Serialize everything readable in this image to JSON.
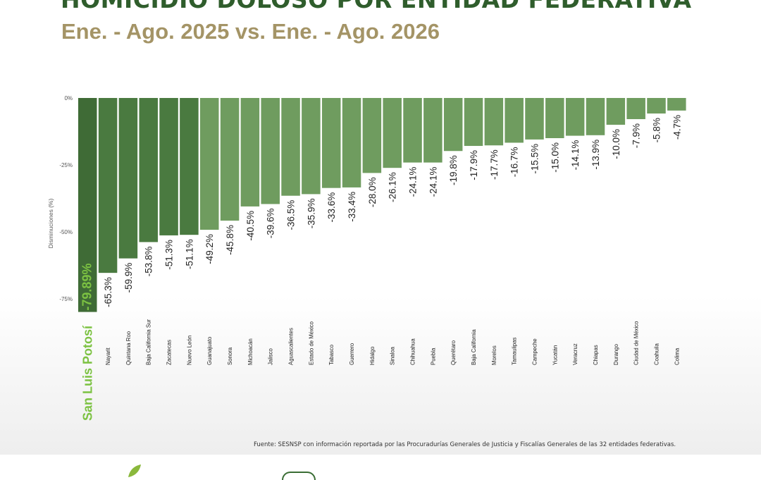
{
  "header": {
    "title": "HOMICIDIO DOLOSO POR ENTIDAD FEDERATIVA",
    "subtitle": "Ene. - Ago. 2025 vs. Ene. - Ago. 2026"
  },
  "footer": {
    "source": "Fuente: SESNSP con información reportada por las Procuradurías Generales de Justicia y Fiscalías Generales de las 32 entidades federativas."
  },
  "colors": {
    "highlight_bar": "#3f6b36",
    "dark_bar": "#4a7a40",
    "light_bar": "#6f9c5f",
    "highlight_text": "#7cc242",
    "title": "#2f5d2c",
    "subtitle": "#a49466"
  },
  "chart_data": {
    "type": "bar",
    "ylabel": "Disminuciones (%)",
    "ylim": [
      -80,
      0
    ],
    "yticks": [
      0,
      -25,
      -50,
      -75
    ],
    "ytick_labels": [
      "0%",
      "-25%",
      "-50%",
      "-75%"
    ],
    "grid": false,
    "legend": "none",
    "highlight": "San Luis Potosí",
    "categories": [
      "San Luis Potosí",
      "Nayarit",
      "Quintana Roo",
      "Baja California Sur",
      "Zacatecas",
      "Nuevo León",
      "Guanajuato",
      "Sonora",
      "Michoacán",
      "Jalisco",
      "Aguascalientes",
      "Estado de México",
      "Tabasco",
      "Guerrero",
      "Hidalgo",
      "Sinaloa",
      "Chihuahua",
      "Puebla",
      "Querétaro",
      "Baja California",
      "Morelos",
      "Tamaulipas",
      "Campeche",
      "Yucatán",
      "Veracruz",
      "Chiapas",
      "Durango",
      "Ciudad de México",
      "Coahuila",
      "Colima"
    ],
    "values": [
      -79.89,
      -65.3,
      -59.9,
      -53.8,
      -51.3,
      -51.1,
      -49.2,
      -45.8,
      -40.5,
      -39.6,
      -36.5,
      -35.9,
      -33.6,
      -33.4,
      -28.0,
      -26.1,
      -24.1,
      -24.1,
      -19.8,
      -17.9,
      -17.7,
      -16.7,
      -15.5,
      -15.0,
      -14.1,
      -13.9,
      -10.0,
      -7.9,
      -5.8,
      -4.7
    ],
    "data_labels": [
      "-79.89%",
      "-65.3%",
      "-59.9%",
      "-53.8%",
      "-51.3%",
      "-51.1%",
      "-49.2%",
      "-45.8%",
      "-40.5%",
      "-39.6%",
      "-36.5%",
      "-35.9%",
      "-33.6%",
      "-33.4%",
      "-28.0%",
      "-26.1%",
      "-24.1%",
      "-24.1%",
      "-19.8%",
      "-17.9%",
      "-17.7%",
      "-16.7%",
      "-15.5%",
      "-15.0%",
      "-14.1%",
      "-13.9%",
      "-10.0%",
      "-7.9%",
      "-5.8%",
      "-4.7%"
    ]
  }
}
